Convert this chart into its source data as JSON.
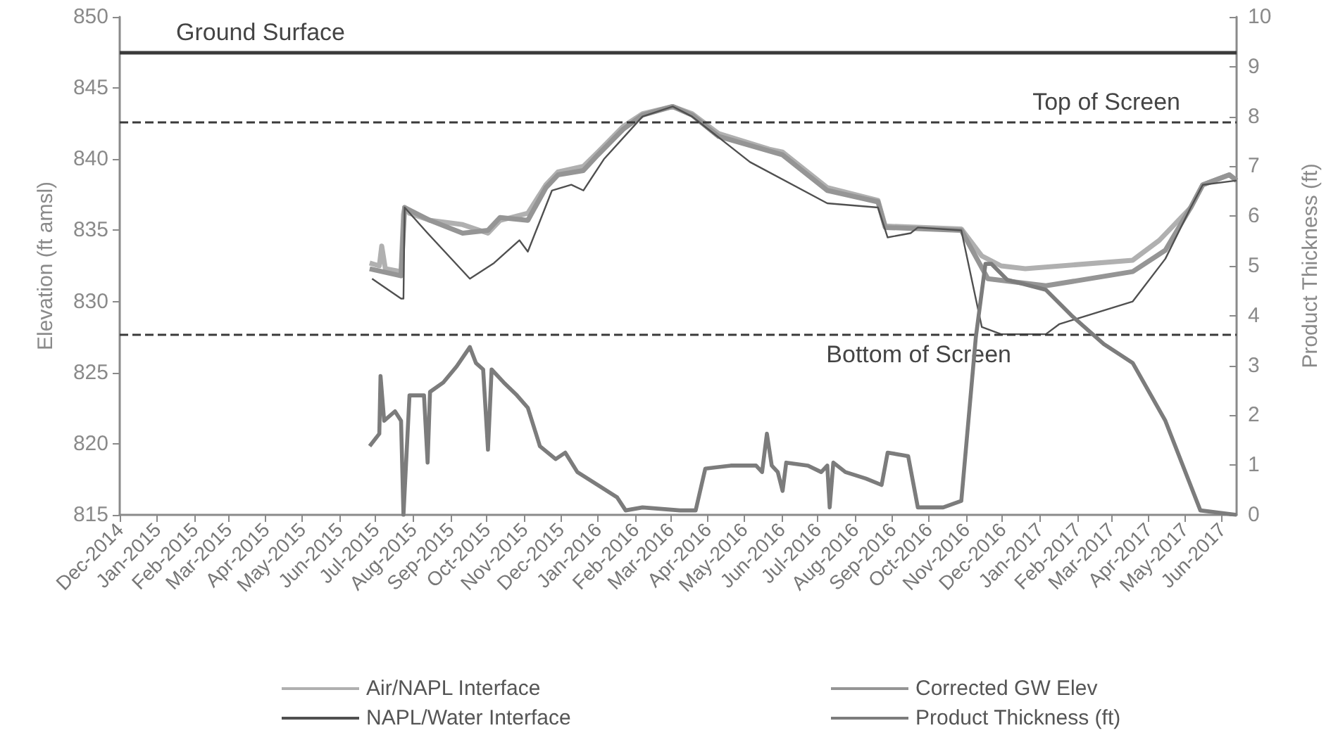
{
  "chart_data": {
    "type": "line",
    "ylabel": "Elevation (ft amsl)",
    "y2label": "Product Thickness (ft)",
    "xlim": [
      "2014-12-01",
      "2017-06-13"
    ],
    "xticks": [
      {
        "value": "2014-12",
        "label": "Dec-2014"
      },
      {
        "value": "2015-01",
        "label": "Jan-2015"
      },
      {
        "value": "2015-02",
        "label": "Feb-2015"
      },
      {
        "value": "2015-03",
        "label": "Mar-2015"
      },
      {
        "value": "2015-04",
        "label": "Apr-2015"
      },
      {
        "value": "2015-05",
        "label": "May-2015"
      },
      {
        "value": "2015-06",
        "label": "Jun-2015"
      },
      {
        "value": "2015-07",
        "label": "Jul-2015"
      },
      {
        "value": "2015-08",
        "label": "Aug-2015"
      },
      {
        "value": "2015-09",
        "label": "Sep-2015"
      },
      {
        "value": "2015-10",
        "label": "Oct-2015"
      },
      {
        "value": "2015-11",
        "label": "Nov-2015"
      },
      {
        "value": "2015-12",
        "label": "Dec-2015"
      },
      {
        "value": "2016-01",
        "label": "Jan-2016"
      },
      {
        "value": "2016-02",
        "label": "Feb-2016"
      },
      {
        "value": "2016-03",
        "label": "Mar-2016"
      },
      {
        "value": "2016-04",
        "label": "Apr-2016"
      },
      {
        "value": "2016-05",
        "label": "May-2016"
      },
      {
        "value": "2016-06",
        "label": "Jun-2016"
      },
      {
        "value": "2016-07",
        "label": "Jul-2016"
      },
      {
        "value": "2016-08",
        "label": "Aug-2016"
      },
      {
        "value": "2016-09",
        "label": "Sep-2016"
      },
      {
        "value": "2016-10",
        "label": "Oct-2016"
      },
      {
        "value": "2016-11",
        "label": "Nov-2016"
      },
      {
        "value": "2016-12",
        "label": "Dec-2016"
      },
      {
        "value": "2017-01",
        "label": "Jan-2017"
      },
      {
        "value": "2017-02",
        "label": "Feb-2017"
      },
      {
        "value": "2017-03",
        "label": "Mar-2017"
      },
      {
        "value": "2017-04",
        "label": "Apr-2017"
      },
      {
        "value": "2017-05",
        "label": "May-2017"
      },
      {
        "value": "2017-06",
        "label": "Jun-2017"
      }
    ],
    "ylim": [
      815,
      850
    ],
    "yticks": [
      815,
      820,
      825,
      830,
      835,
      840,
      845,
      850
    ],
    "y2lim": [
      0,
      10
    ],
    "y2ticks": [
      0,
      1,
      2,
      3,
      4,
      5,
      6,
      7,
      8,
      9,
      10
    ],
    "grid": false,
    "marker": "none",
    "legend": "bottom",
    "ref_lines": [
      {
        "axis": "y",
        "value": 847.5,
        "label": "Ground Surface",
        "color": "#3a3a3a",
        "line_style": "solid"
      },
      {
        "axis": "y",
        "value": 842.6,
        "label": "Top of Screen",
        "color": "#3a3a3a",
        "line_style": "dashed"
      },
      {
        "axis": "y",
        "value": 827.7,
        "label": "Bottom of Screen",
        "color": "#3a3a3a",
        "line_style": "dashed"
      }
    ],
    "series": [
      {
        "name": "Air/NAPL Interface",
        "color": "#b0b0b0",
        "x": [
          "2015-06-26",
          "2015-07-04",
          "2015-07-06",
          "2015-07-09",
          "2015-07-22",
          "2015-07-24",
          "2015-07-25",
          "2015-07-29",
          "2015-08-15",
          "2015-09-11",
          "2015-10-02",
          "2015-10-12",
          "2015-11-04",
          "2015-11-19",
          "2015-11-29",
          "2015-12-20",
          "2016-01-01",
          "2016-01-22",
          "2016-02-07",
          "2016-03-03",
          "2016-03-19",
          "2016-04-10",
          "2016-05-22",
          "2016-06-02",
          "2016-07-09",
          "2016-08-20",
          "2016-08-26",
          "2016-10-28",
          "2016-11-14",
          "2016-11-30",
          "2016-12-20",
          "2017-03-19",
          "2017-04-10",
          "2017-05-06",
          "2017-05-16",
          "2017-06-07",
          "2017-06-13"
        ],
        "values": [
          832.7,
          832.5,
          833.9,
          832.3,
          832.1,
          836.1,
          836.6,
          836.2,
          835.7,
          835.4,
          834.8,
          835.7,
          836.2,
          838.2,
          839.1,
          839.5,
          840.5,
          842.3,
          843.2,
          843.7,
          843.2,
          841.8,
          840.7,
          840.5,
          838.0,
          837.1,
          835.3,
          835.1,
          833.2,
          832.5,
          832.3,
          832.9,
          834.3,
          836.6,
          838.2,
          838.9,
          838.5
        ]
      },
      {
        "name": "Corrected GW Elev",
        "color": "#959595",
        "x": [
          "2015-06-26",
          "2015-07-22",
          "2015-07-25",
          "2015-08-15",
          "2015-09-11",
          "2015-10-02",
          "2015-10-12",
          "2015-11-04",
          "2015-11-19",
          "2015-11-29",
          "2015-12-20",
          "2016-01-01",
          "2016-01-22",
          "2016-02-07",
          "2016-03-03",
          "2016-03-19",
          "2016-04-10",
          "2016-06-02",
          "2016-07-09",
          "2016-08-20",
          "2016-08-26",
          "2016-10-28",
          "2016-11-19",
          "2017-01-06",
          "2017-03-19",
          "2017-04-15",
          "2017-05-06",
          "2017-05-16",
          "2017-06-07",
          "2017-06-13"
        ],
        "values": [
          832.3,
          831.8,
          836.6,
          835.7,
          834.8,
          835.0,
          835.9,
          835.7,
          838.0,
          838.9,
          839.2,
          840.3,
          842.1,
          843.1,
          843.7,
          843.1,
          841.6,
          840.3,
          837.8,
          837.0,
          835.2,
          835.0,
          831.6,
          831.1,
          832.1,
          833.6,
          836.6,
          838.2,
          838.9,
          838.5
        ]
      },
      {
        "name": "NAPL/Water Interface",
        "color": "#505050",
        "x": [
          "2015-06-28",
          "2015-07-22",
          "2015-07-24",
          "2015-07-25",
          "2015-08-13",
          "2015-09-17",
          "2015-10-07",
          "2015-10-28",
          "2015-11-04",
          "2015-11-24",
          "2015-12-10",
          "2015-12-20",
          "2016-01-06",
          "2016-02-07",
          "2016-03-03",
          "2016-03-19",
          "2016-05-06",
          "2016-07-09",
          "2016-08-20",
          "2016-08-28",
          "2016-09-16",
          "2016-09-22",
          "2016-10-28",
          "2016-11-14",
          "2016-11-30",
          "2017-01-06",
          "2017-01-17",
          "2017-03-19",
          "2017-04-15",
          "2017-05-06",
          "2017-05-16",
          "2017-06-13"
        ],
        "values": [
          831.6,
          830.2,
          830.2,
          836.6,
          834.8,
          831.6,
          832.7,
          834.3,
          833.5,
          837.8,
          838.2,
          837.8,
          840.0,
          843.0,
          843.7,
          843.0,
          839.8,
          836.9,
          836.6,
          834.5,
          834.8,
          835.2,
          835.0,
          828.2,
          827.7,
          827.7,
          828.4,
          830.0,
          833.0,
          836.6,
          838.2,
          838.5
        ]
      },
      {
        "name": "Product Thickness (ft)",
        "color": "#7c7c7c",
        "axis": "y2",
        "x": [
          "2015-06-26",
          "2015-07-04",
          "2015-07-05",
          "2015-07-08",
          "2015-07-17",
          "2015-07-22",
          "2015-07-24",
          "2015-07-29",
          "2015-08-10",
          "2015-08-13",
          "2015-08-15",
          "2015-08-26",
          "2015-09-06",
          "2015-09-17",
          "2015-09-22",
          "2015-09-28",
          "2015-10-02",
          "2015-10-05",
          "2015-10-15",
          "2015-10-26",
          "2015-11-04",
          "2015-11-14",
          "2015-11-27",
          "2015-12-05",
          "2015-12-15",
          "2016-01-01",
          "2016-01-17",
          "2016-01-24",
          "2016-02-07",
          "2016-03-09",
          "2016-03-22",
          "2016-03-30",
          "2016-04-20",
          "2016-05-11",
          "2016-05-16",
          "2016-05-20",
          "2016-05-24",
          "2016-05-29",
          "2016-06-02",
          "2016-06-05",
          "2016-06-23",
          "2016-07-04",
          "2016-07-09",
          "2016-07-11",
          "2016-07-14",
          "2016-07-24",
          "2016-08-10",
          "2016-08-23",
          "2016-08-28",
          "2016-09-14",
          "2016-09-22",
          "2016-10-13",
          "2016-10-28",
          "2016-11-09",
          "2016-11-17",
          "2016-11-22",
          "2016-12-05",
          "2017-01-06",
          "2017-01-27",
          "2017-02-23",
          "2017-03-19",
          "2017-04-15",
          "2017-05-14",
          "2017-06-13"
        ],
        "values": [
          1.38,
          1.63,
          2.79,
          1.89,
          2.08,
          1.89,
          0,
          2.4,
          2.4,
          1.05,
          2.47,
          2.66,
          2.98,
          3.37,
          3.05,
          2.92,
          1.31,
          2.92,
          2.66,
          2.4,
          2.15,
          1.38,
          1.12,
          1.25,
          0.86,
          0.6,
          0.35,
          0.09,
          0.15,
          0.09,
          0.09,
          0.93,
          0.99,
          0.99,
          0.86,
          1.63,
          0.99,
          0.86,
          0.48,
          1.05,
          0.99,
          0.86,
          0.99,
          0.15,
          1.05,
          0.86,
          0.73,
          0.6,
          1.25,
          1.18,
          0.15,
          0.15,
          0.28,
          3.56,
          5.04,
          5.04,
          4.72,
          4.52,
          4.01,
          3.43,
          3.05,
          1.89,
          0.09,
          0
        ]
      }
    ]
  }
}
